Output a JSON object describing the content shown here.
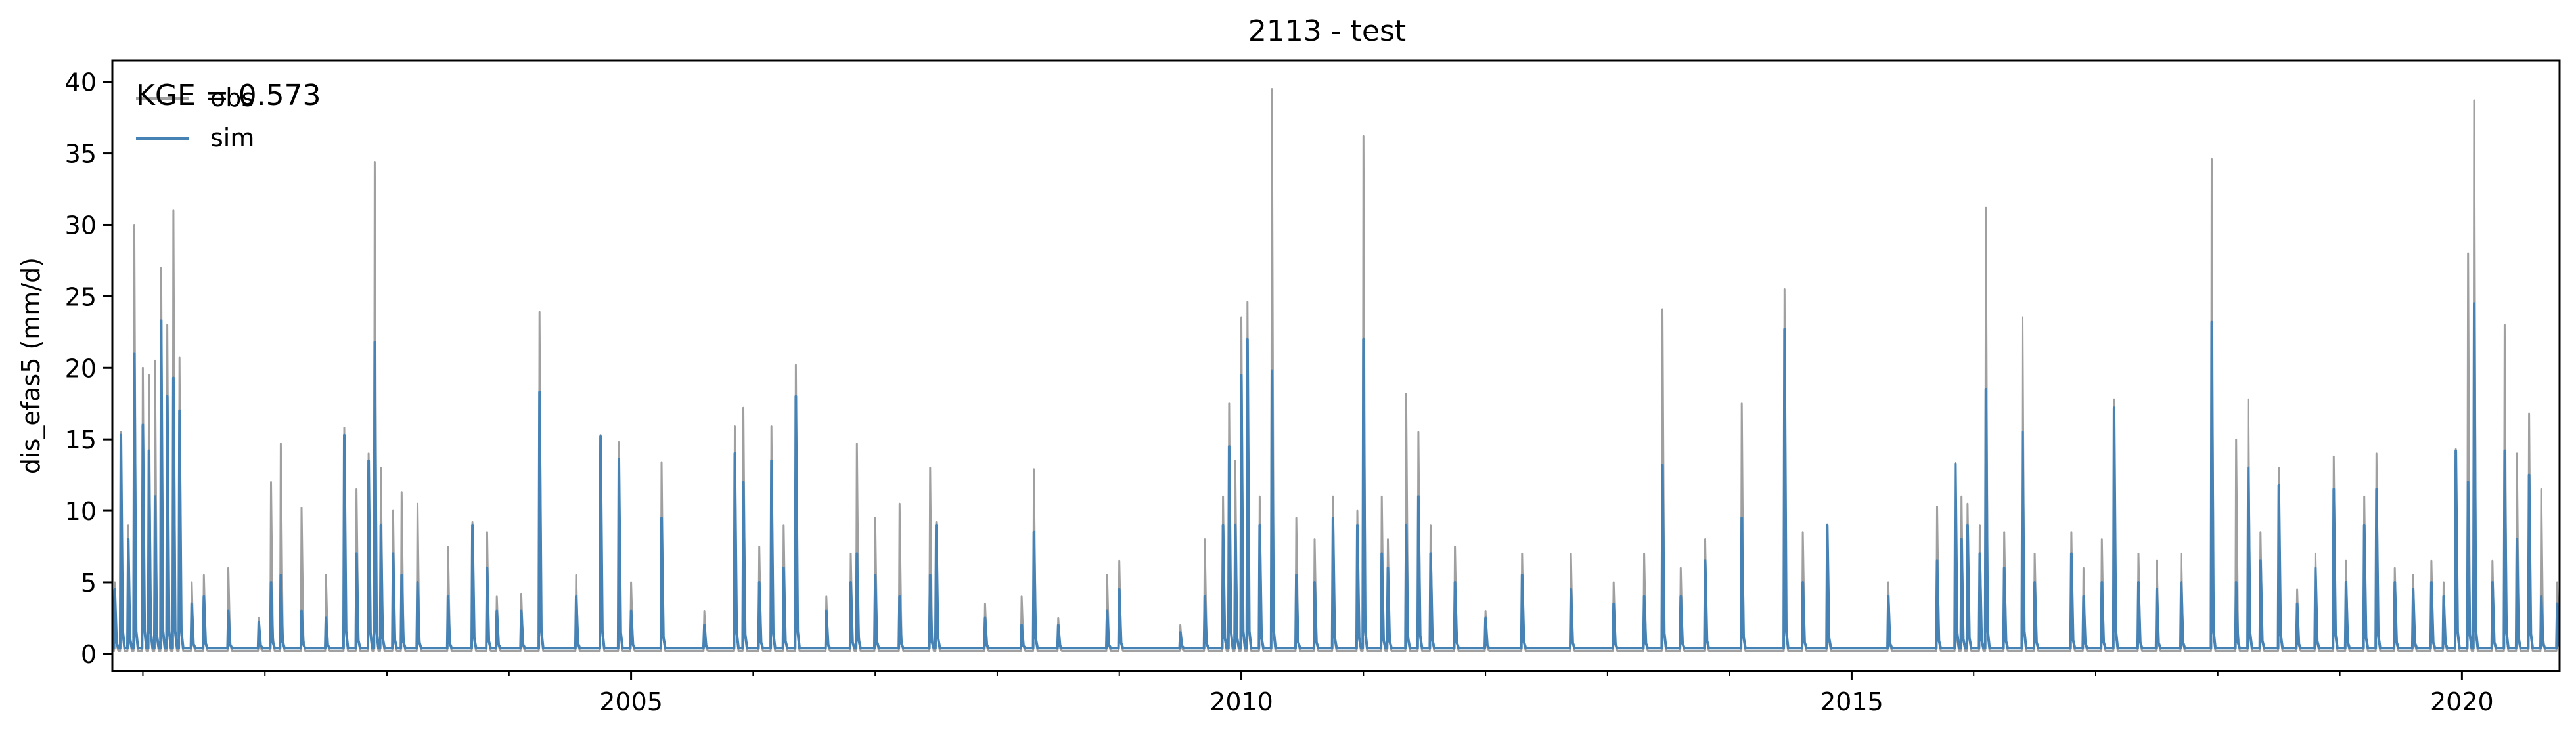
{
  "chart_data": {
    "type": "line",
    "title": "2113 - test",
    "xlabel": "",
    "ylabel": "dis_efas5 (mm/d)",
    "xlim": [
      2000.75,
      2020.8
    ],
    "ylim": [
      -1.2,
      41.5
    ],
    "x_major_ticks": [
      2005,
      2010,
      2015,
      2020
    ],
    "x_minor_ticks": [
      2001,
      2002,
      2003,
      2004,
      2006,
      2007,
      2008,
      2009,
      2011,
      2012,
      2013,
      2014,
      2016,
      2017,
      2018,
      2019
    ],
    "y_ticks": [
      0,
      5,
      10,
      15,
      20,
      25,
      30,
      35,
      40
    ],
    "grid": false,
    "legend": {
      "position": "top-left",
      "entries": [
        "obs",
        "sim"
      ]
    },
    "annotation": "KGE = 0.573",
    "colors": {
      "obs": "#a0a0a0",
      "sim": "#4682b4"
    },
    "baseline": {
      "obs": 0.2,
      "sim": 0.4
    },
    "series": [
      {
        "name": "obs",
        "peaks": [
          [
            2000.77,
            5
          ],
          [
            2000.82,
            15.5
          ],
          [
            2000.88,
            9
          ],
          [
            2000.93,
            30
          ],
          [
            2001.0,
            20
          ],
          [
            2001.05,
            19.5
          ],
          [
            2001.1,
            20.5
          ],
          [
            2001.15,
            27
          ],
          [
            2001.2,
            23
          ],
          [
            2001.25,
            31
          ],
          [
            2001.3,
            20.7
          ],
          [
            2001.4,
            5
          ],
          [
            2001.5,
            5.5
          ],
          [
            2001.7,
            6
          ],
          [
            2001.95,
            2.5
          ],
          [
            2002.05,
            12
          ],
          [
            2002.13,
            14.7
          ],
          [
            2002.3,
            10.2
          ],
          [
            2002.5,
            5.5
          ],
          [
            2002.65,
            15.8
          ],
          [
            2002.75,
            11.5
          ],
          [
            2002.85,
            14
          ],
          [
            2002.9,
            34.4
          ],
          [
            2002.95,
            13
          ],
          [
            2003.05,
            10
          ],
          [
            2003.12,
            11.3
          ],
          [
            2003.25,
            10.5
          ],
          [
            2003.5,
            7.5
          ],
          [
            2003.7,
            9.2
          ],
          [
            2003.82,
            8.5
          ],
          [
            2003.9,
            4
          ],
          [
            2004.1,
            4.2
          ],
          [
            2004.25,
            23.9
          ],
          [
            2004.55,
            5.5
          ],
          [
            2004.75,
            15.3
          ],
          [
            2004.9,
            14.8
          ],
          [
            2005.0,
            5
          ],
          [
            2005.25,
            13.4
          ],
          [
            2005.6,
            3
          ],
          [
            2005.85,
            15.9
          ],
          [
            2005.92,
            17.2
          ],
          [
            2006.05,
            7.5
          ],
          [
            2006.15,
            15.9
          ],
          [
            2006.25,
            9
          ],
          [
            2006.35,
            20.2
          ],
          [
            2006.6,
            4
          ],
          [
            2006.8,
            7
          ],
          [
            2006.85,
            14.7
          ],
          [
            2007.0,
            9.5
          ],
          [
            2007.2,
            10.5
          ],
          [
            2007.45,
            13
          ],
          [
            2007.5,
            9.2
          ],
          [
            2007.9,
            3.5
          ],
          [
            2008.2,
            4
          ],
          [
            2008.3,
            12.9
          ],
          [
            2008.5,
            2.5
          ],
          [
            2008.9,
            5.5
          ],
          [
            2009.0,
            6.5
          ],
          [
            2009.5,
            2
          ],
          [
            2009.7,
            8
          ],
          [
            2009.85,
            11
          ],
          [
            2009.9,
            17.5
          ],
          [
            2009.95,
            13.5
          ],
          [
            2010.0,
            23.5
          ],
          [
            2010.05,
            24.6
          ],
          [
            2010.15,
            11
          ],
          [
            2010.25,
            39.5
          ],
          [
            2010.45,
            9.5
          ],
          [
            2010.6,
            8
          ],
          [
            2010.75,
            11
          ],
          [
            2010.95,
            10
          ],
          [
            2011.0,
            36.2
          ],
          [
            2011.15,
            11
          ],
          [
            2011.2,
            8
          ],
          [
            2011.35,
            18.2
          ],
          [
            2011.45,
            15.5
          ],
          [
            2011.55,
            9
          ],
          [
            2011.75,
            7.5
          ],
          [
            2012.0,
            3
          ],
          [
            2012.3,
            7
          ],
          [
            2012.7,
            7
          ],
          [
            2013.05,
            5
          ],
          [
            2013.3,
            7
          ],
          [
            2013.45,
            24.1
          ],
          [
            2013.6,
            6
          ],
          [
            2013.8,
            8
          ],
          [
            2014.1,
            17.5
          ],
          [
            2014.45,
            25.5
          ],
          [
            2014.6,
            8.5
          ],
          [
            2014.8,
            9
          ],
          [
            2015.3,
            5
          ],
          [
            2015.7,
            10.3
          ],
          [
            2015.85,
            10
          ],
          [
            2015.9,
            11
          ],
          [
            2015.95,
            10.5
          ],
          [
            2016.05,
            9
          ],
          [
            2016.1,
            31.2
          ],
          [
            2016.25,
            8.5
          ],
          [
            2016.4,
            23.5
          ],
          [
            2016.5,
            7
          ],
          [
            2016.8,
            8.5
          ],
          [
            2016.9,
            6
          ],
          [
            2017.05,
            8
          ],
          [
            2017.15,
            17.8
          ],
          [
            2017.35,
            7
          ],
          [
            2017.5,
            6.5
          ],
          [
            2017.7,
            7
          ],
          [
            2017.95,
            34.6
          ],
          [
            2018.15,
            15
          ],
          [
            2018.25,
            17.8
          ],
          [
            2018.35,
            8.5
          ],
          [
            2018.5,
            13
          ],
          [
            2018.65,
            4.5
          ],
          [
            2018.8,
            7
          ],
          [
            2018.95,
            13.8
          ],
          [
            2019.05,
            6.5
          ],
          [
            2019.2,
            11
          ],
          [
            2019.3,
            14
          ],
          [
            2019.45,
            6
          ],
          [
            2019.6,
            5.5
          ],
          [
            2019.75,
            6.5
          ],
          [
            2019.85,
            5
          ],
          [
            2019.95,
            14.3
          ],
          [
            2020.05,
            28
          ],
          [
            2020.1,
            38.7
          ],
          [
            2020.25,
            6.5
          ],
          [
            2020.35,
            23
          ],
          [
            2020.45,
            14
          ],
          [
            2020.55,
            16.8
          ],
          [
            2020.65,
            11.5
          ],
          [
            2020.78,
            5
          ]
        ]
      },
      {
        "name": "sim",
        "peaks": [
          [
            2000.77,
            4.5
          ],
          [
            2000.82,
            15.3
          ],
          [
            2000.88,
            8
          ],
          [
            2000.93,
            21
          ],
          [
            2001.0,
            16
          ],
          [
            2001.05,
            14.2
          ],
          [
            2001.1,
            11
          ],
          [
            2001.15,
            23.3
          ],
          [
            2001.2,
            18
          ],
          [
            2001.25,
            19.3
          ],
          [
            2001.3,
            17
          ],
          [
            2001.4,
            3.5
          ],
          [
            2001.5,
            4
          ],
          [
            2001.7,
            3
          ],
          [
            2001.95,
            2.2
          ],
          [
            2002.05,
            5
          ],
          [
            2002.13,
            5.5
          ],
          [
            2002.3,
            3
          ],
          [
            2002.5,
            2.5
          ],
          [
            2002.65,
            15.3
          ],
          [
            2002.75,
            7
          ],
          [
            2002.85,
            13.5
          ],
          [
            2002.9,
            21.8
          ],
          [
            2002.95,
            9
          ],
          [
            2003.05,
            7
          ],
          [
            2003.12,
            5.5
          ],
          [
            2003.25,
            5
          ],
          [
            2003.5,
            4
          ],
          [
            2003.7,
            9
          ],
          [
            2003.82,
            6
          ],
          [
            2003.9,
            3
          ],
          [
            2004.1,
            3
          ],
          [
            2004.25,
            18.3
          ],
          [
            2004.55,
            4
          ],
          [
            2004.75,
            15.2
          ],
          [
            2004.9,
            13.6
          ],
          [
            2005.0,
            3
          ],
          [
            2005.25,
            9.5
          ],
          [
            2005.6,
            2
          ],
          [
            2005.85,
            14
          ],
          [
            2005.92,
            12
          ],
          [
            2006.05,
            5
          ],
          [
            2006.15,
            13.5
          ],
          [
            2006.25,
            6
          ],
          [
            2006.35,
            18
          ],
          [
            2006.6,
            3
          ],
          [
            2006.8,
            5
          ],
          [
            2006.85,
            7
          ],
          [
            2007.0,
            5.5
          ],
          [
            2007.2,
            4
          ],
          [
            2007.45,
            5.5
          ],
          [
            2007.5,
            9
          ],
          [
            2007.9,
            2.5
          ],
          [
            2008.2,
            2
          ],
          [
            2008.3,
            8.5
          ],
          [
            2008.5,
            2
          ],
          [
            2008.9,
            3
          ],
          [
            2009.0,
            4.5
          ],
          [
            2009.5,
            1.5
          ],
          [
            2009.7,
            4
          ],
          [
            2009.85,
            9
          ],
          [
            2009.9,
            14.5
          ],
          [
            2009.95,
            9
          ],
          [
            2010.0,
            19.5
          ],
          [
            2010.05,
            22
          ],
          [
            2010.15,
            9
          ],
          [
            2010.25,
            19.8
          ],
          [
            2010.45,
            5.5
          ],
          [
            2010.6,
            5
          ],
          [
            2010.75,
            9.5
          ],
          [
            2010.95,
            9
          ],
          [
            2011.0,
            22
          ],
          [
            2011.15,
            7
          ],
          [
            2011.2,
            6
          ],
          [
            2011.35,
            9
          ],
          [
            2011.45,
            11
          ],
          [
            2011.55,
            7
          ],
          [
            2011.75,
            5
          ],
          [
            2012.0,
            2.5
          ],
          [
            2012.3,
            5.5
          ],
          [
            2012.7,
            4.5
          ],
          [
            2013.05,
            3.5
          ],
          [
            2013.3,
            4
          ],
          [
            2013.45,
            13.2
          ],
          [
            2013.6,
            4
          ],
          [
            2013.8,
            6.5
          ],
          [
            2014.1,
            9.5
          ],
          [
            2014.45,
            22.7
          ],
          [
            2014.6,
            5
          ],
          [
            2014.8,
            9
          ],
          [
            2015.3,
            4
          ],
          [
            2015.7,
            6.5
          ],
          [
            2015.85,
            13.3
          ],
          [
            2015.9,
            8
          ],
          [
            2015.95,
            9
          ],
          [
            2016.05,
            7
          ],
          [
            2016.1,
            18.5
          ],
          [
            2016.25,
            6
          ],
          [
            2016.4,
            15.5
          ],
          [
            2016.5,
            5
          ],
          [
            2016.8,
            7
          ],
          [
            2016.9,
            4
          ],
          [
            2017.05,
            5
          ],
          [
            2017.15,
            17.2
          ],
          [
            2017.35,
            5
          ],
          [
            2017.5,
            4.5
          ],
          [
            2017.7,
            5
          ],
          [
            2017.95,
            23.2
          ],
          [
            2018.15,
            5
          ],
          [
            2018.25,
            13
          ],
          [
            2018.35,
            6.5
          ],
          [
            2018.5,
            11.8
          ],
          [
            2018.65,
            3.5
          ],
          [
            2018.8,
            6
          ],
          [
            2018.95,
            11.5
          ],
          [
            2019.05,
            5
          ],
          [
            2019.2,
            9
          ],
          [
            2019.3,
            11.5
          ],
          [
            2019.45,
            5
          ],
          [
            2019.6,
            4.5
          ],
          [
            2019.75,
            5
          ],
          [
            2019.85,
            4
          ],
          [
            2019.95,
            14.2
          ],
          [
            2020.05,
            12
          ],
          [
            2020.1,
            24.5
          ],
          [
            2020.25,
            5
          ],
          [
            2020.35,
            14.2
          ],
          [
            2020.45,
            8
          ],
          [
            2020.55,
            12.5
          ],
          [
            2020.65,
            4
          ],
          [
            2020.78,
            3.5
          ]
        ]
      }
    ]
  }
}
